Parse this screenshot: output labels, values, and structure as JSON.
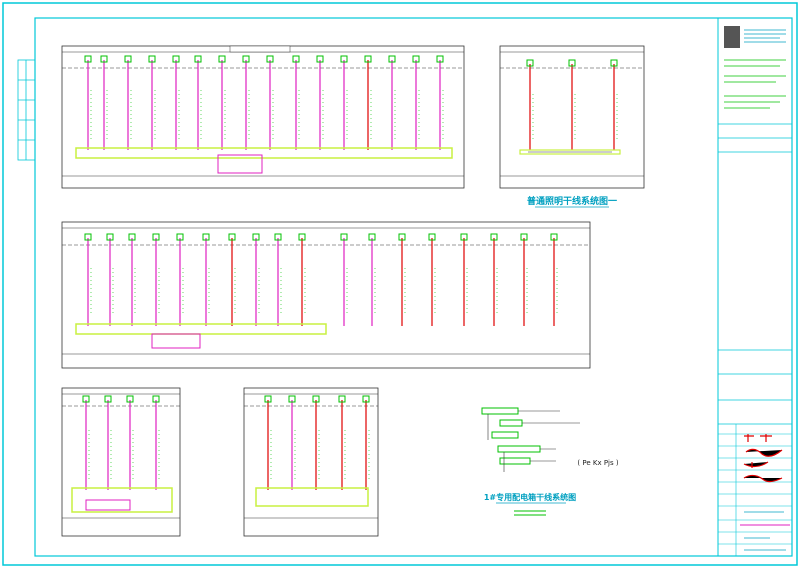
{
  "colors": {
    "border": "#00c8d8",
    "frame": "#222222",
    "pink": "#e020c0",
    "red": "#e00000",
    "green": "#00c000",
    "yellowgreen": "#c8f040",
    "cyan_text": "#00a0c0"
  },
  "panel_top_right": {
    "title": "普通照明干线系统图一"
  },
  "panel_small_right": {
    "title": "1#专用配电箱干线系统图",
    "formula": "( Pe   Kx   Pjs )"
  }
}
